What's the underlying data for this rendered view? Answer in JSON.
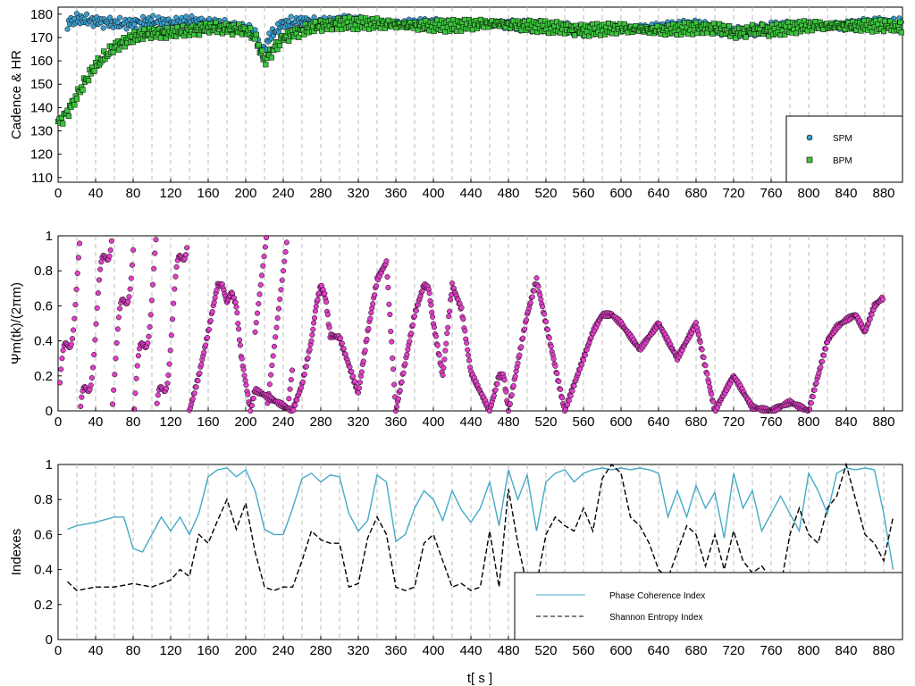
{
  "colors": {
    "spm": "#3b9fd0",
    "bpm": "#3cc43c",
    "phase": "#e040c8",
    "pci": "#44aac8",
    "sei": "#000000",
    "vline": "#bbbbbb"
  },
  "xlabel": "t[ s ]",
  "chart_data": [
    {
      "type": "scatter",
      "ylabel": "Cadence & HR",
      "xlim": [
        0,
        900
      ],
      "ylim": [
        108,
        183
      ],
      "x_ticks": [
        0,
        40,
        80,
        120,
        160,
        200,
        240,
        280,
        320,
        360,
        400,
        440,
        480,
        520,
        560,
        600,
        640,
        680,
        720,
        760,
        800,
        840,
        880
      ],
      "y_ticks": [
        110,
        120,
        130,
        140,
        150,
        160,
        170,
        180
      ],
      "legend_position": "bottom-right",
      "series": [
        {
          "name": "SPM",
          "marker": "circle",
          "x": [
            0,
            10,
            20,
            40,
            60,
            80,
            100,
            120,
            140,
            160,
            180,
            200,
            210,
            218,
            225,
            240,
            260,
            280,
            300,
            340,
            380,
            420,
            460,
            500,
            540,
            560,
            600,
            640,
            680,
            700,
            720,
            740,
            760,
            800,
            840,
            880,
            900
          ],
          "y": [
            null,
            176,
            178,
            177,
            176,
            176,
            177,
            176,
            177,
            176,
            175,
            174,
            171,
            163,
            170,
            176,
            177,
            176,
            177,
            176,
            176,
            175,
            176,
            175,
            174,
            173,
            174,
            174,
            175,
            174,
            172,
            173,
            174,
            175,
            175,
            176,
            176
          ]
        },
        {
          "name": "BPM",
          "marker": "square",
          "x": [
            0,
            10,
            20,
            30,
            40,
            50,
            60,
            70,
            80,
            100,
            120,
            140,
            160,
            180,
            200,
            210,
            220,
            230,
            240,
            260,
            280,
            300,
            340,
            380,
            420,
            460,
            500,
            540,
            560,
            600,
            640,
            680,
            700,
            720,
            740,
            760,
            800,
            840,
            880,
            900
          ],
          "y": [
            133,
            138,
            145,
            152,
            158,
            162,
            166,
            168,
            170,
            172,
            172,
            173,
            174,
            174,
            173,
            170,
            160,
            165,
            170,
            173,
            175,
            176,
            176,
            175,
            175,
            176,
            175,
            174,
            173,
            174,
            173,
            174,
            174,
            172,
            173,
            173,
            175,
            175,
            175,
            174
          ]
        }
      ]
    },
    {
      "type": "scatter",
      "ylabel": "Ψm(tk)/(2πm)",
      "xlim": [
        0,
        900
      ],
      "ylim": [
        0,
        1
      ],
      "x_ticks": [
        0,
        40,
        80,
        120,
        160,
        200,
        240,
        280,
        320,
        360,
        400,
        440,
        480,
        520,
        560,
        600,
        640,
        680,
        720,
        760,
        800,
        840,
        880
      ],
      "y_ticks": [
        0,
        0.2,
        0.4,
        0.6,
        0.8,
        1
      ],
      "y_tick_labels": [
        "0",
        "0.2",
        "0.4",
        "0.6",
        "0.8",
        "1"
      ],
      "series": [
        {
          "name": "",
          "marker": "circle",
          "x": [
            140,
            150,
            160,
            170,
            175,
            180,
            185,
            190,
            195,
            205,
            210,
            250,
            260,
            270,
            275,
            280,
            285,
            290,
            300,
            320,
            330,
            340,
            350,
            360,
            380,
            390,
            395,
            400,
            410,
            420,
            430,
            440,
            460,
            470,
            475,
            480,
            500,
            510,
            520,
            540,
            560,
            570,
            580,
            590,
            600,
            620,
            640,
            660,
            680,
            700,
            720,
            740,
            760,
            780,
            800,
            810,
            820,
            830,
            840,
            850,
            860,
            870,
            880
          ],
          "y": [
            0.0,
            0.2,
            0.45,
            0.72,
            0.72,
            0.62,
            0.68,
            0.6,
            0.32,
            0.0,
            0.12,
            0.0,
            0.15,
            0.4,
            0.6,
            0.72,
            0.65,
            0.43,
            0.42,
            0.1,
            0.45,
            0.75,
            0.85,
            0.0,
            0.55,
            0.72,
            0.7,
            0.5,
            0.2,
            0.72,
            0.58,
            0.22,
            0.0,
            0.2,
            0.2,
            0.0,
            0.55,
            0.75,
            0.5,
            0.0,
            0.3,
            0.45,
            0.55,
            0.55,
            0.5,
            0.35,
            0.5,
            0.3,
            0.5,
            0.0,
            0.2,
            0.02,
            0.0,
            0.05,
            0.0,
            0.2,
            0.4,
            0.48,
            0.52,
            0.55,
            0.45,
            0.6,
            0.65
          ]
        }
      ]
    },
    {
      "type": "line",
      "ylabel": "Indexes",
      "xlim": [
        0,
        900
      ],
      "ylim": [
        0,
        1
      ],
      "x_ticks": [
        0,
        40,
        80,
        120,
        160,
        200,
        240,
        280,
        320,
        360,
        400,
        440,
        480,
        520,
        560,
        600,
        640,
        680,
        720,
        760,
        800,
        840,
        880
      ],
      "y_ticks": [
        0,
        0.2,
        0.4,
        0.6,
        0.8,
        1
      ],
      "y_tick_labels": [
        "0",
        "0.2",
        "0.4",
        "0.6",
        "0.8",
        "1"
      ],
      "legend_position": "bottom-right",
      "series": [
        {
          "name": "Phase Coherence Index",
          "style": "solid",
          "x": [
            10,
            20,
            40,
            60,
            70,
            80,
            90,
            100,
            110,
            120,
            130,
            140,
            150,
            160,
            170,
            180,
            190,
            200,
            210,
            220,
            230,
            240,
            250,
            260,
            270,
            280,
            290,
            300,
            310,
            320,
            330,
            340,
            350,
            360,
            370,
            380,
            390,
            400,
            410,
            420,
            430,
            440,
            450,
            460,
            470,
            480,
            490,
            500,
            510,
            520,
            530,
            540,
            550,
            560,
            570,
            580,
            590,
            600,
            610,
            620,
            630,
            640,
            650,
            660,
            670,
            680,
            690,
            700,
            710,
            720,
            730,
            740,
            750,
            760,
            770,
            780,
            790,
            800,
            810,
            820,
            830,
            840,
            850,
            860,
            870,
            880,
            890
          ],
          "y": [
            0.63,
            0.65,
            0.67,
            0.7,
            0.7,
            0.52,
            0.5,
            0.6,
            0.7,
            0.62,
            0.7,
            0.6,
            0.72,
            0.93,
            0.97,
            0.98,
            0.93,
            0.97,
            0.85,
            0.63,
            0.6,
            0.6,
            0.75,
            0.92,
            0.95,
            0.9,
            0.94,
            0.93,
            0.72,
            0.62,
            0.68,
            0.94,
            0.9,
            0.56,
            0.6,
            0.75,
            0.85,
            0.8,
            0.68,
            0.85,
            0.74,
            0.67,
            0.75,
            0.9,
            0.65,
            0.97,
            0.8,
            0.94,
            0.62,
            0.9,
            0.95,
            0.97,
            0.9,
            0.95,
            0.97,
            0.98,
            0.97,
            0.98,
            0.97,
            0.98,
            0.97,
            0.95,
            0.7,
            0.85,
            0.7,
            0.88,
            0.75,
            0.84,
            0.58,
            0.95,
            0.75,
            0.85,
            0.62,
            0.72,
            0.82,
            0.72,
            0.62,
            0.95,
            0.85,
            0.72,
            0.95,
            0.98,
            0.97,
            0.98,
            0.97,
            0.72,
            0.4
          ]
        },
        {
          "name": "Shannon Entropy Index",
          "style": "dashed",
          "x": [
            10,
            20,
            40,
            60,
            80,
            100,
            120,
            130,
            140,
            150,
            160,
            170,
            180,
            190,
            200,
            210,
            220,
            230,
            240,
            250,
            260,
            270,
            280,
            290,
            300,
            310,
            320,
            330,
            340,
            350,
            360,
            370,
            380,
            390,
            400,
            410,
            420,
            430,
            440,
            450,
            460,
            470,
            480,
            490,
            500,
            510,
            520,
            530,
            540,
            550,
            560,
            570,
            580,
            590,
            600,
            610,
            620,
            630,
            640,
            650,
            660,
            670,
            680,
            690,
            700,
            710,
            720,
            730,
            740,
            750,
            760,
            770,
            780,
            790,
            800,
            810,
            820,
            830,
            840,
            850,
            860,
            870,
            880,
            890
          ],
          "y": [
            0.33,
            0.28,
            0.3,
            0.3,
            0.32,
            0.3,
            0.34,
            0.4,
            0.36,
            0.6,
            0.55,
            0.68,
            0.8,
            0.63,
            0.78,
            0.5,
            0.3,
            0.28,
            0.3,
            0.3,
            0.45,
            0.62,
            0.57,
            0.55,
            0.55,
            0.3,
            0.32,
            0.58,
            0.7,
            0.6,
            0.3,
            0.28,
            0.3,
            0.55,
            0.6,
            0.45,
            0.3,
            0.32,
            0.28,
            0.3,
            0.62,
            0.3,
            0.86,
            0.55,
            0.3,
            0.32,
            0.6,
            0.7,
            0.65,
            0.62,
            0.75,
            0.62,
            0.92,
            1.0,
            0.95,
            0.7,
            0.65,
            0.55,
            0.4,
            0.35,
            0.5,
            0.65,
            0.6,
            0.42,
            0.6,
            0.4,
            0.62,
            0.45,
            0.38,
            0.42,
            0.35,
            0.3,
            0.6,
            0.75,
            0.6,
            0.55,
            0.75,
            0.82,
            1.0,
            0.8,
            0.6,
            0.55,
            0.45,
            0.7
          ]
        }
      ]
    }
  ]
}
